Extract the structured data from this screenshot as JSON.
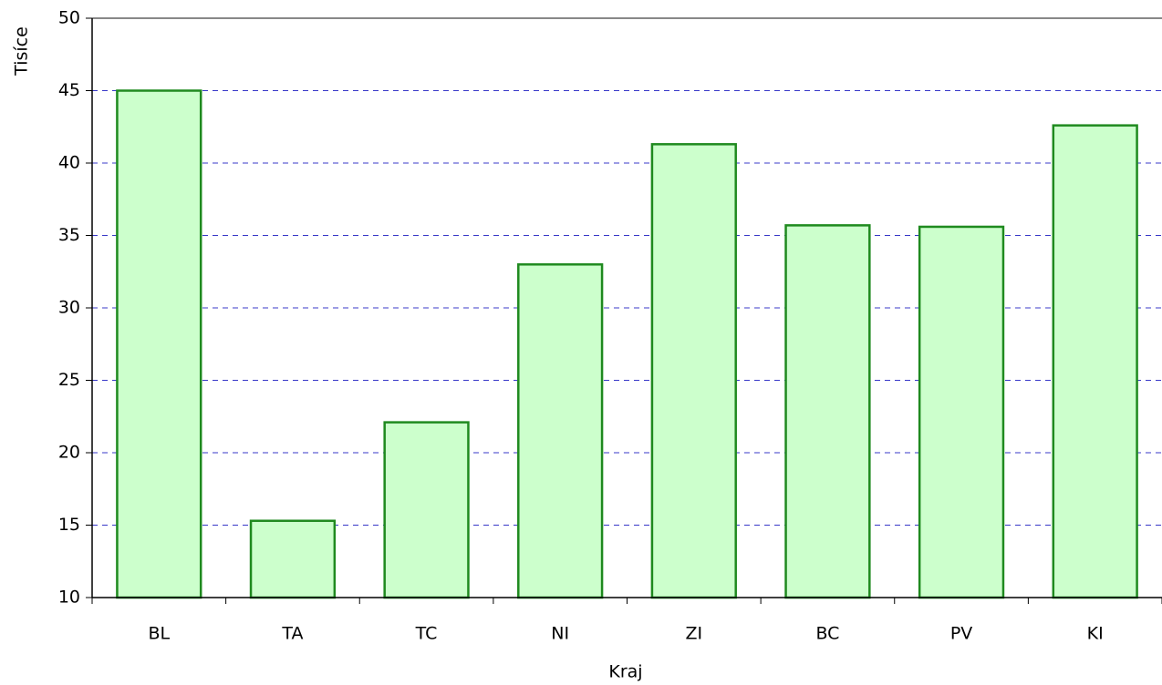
{
  "chart_data": {
    "type": "bar",
    "x_label": "Kraj",
    "y_label": "Tisíce",
    "categories": [
      "BL",
      "TA",
      "TC",
      "NI",
      "ZI",
      "BC",
      "PV",
      "KI"
    ],
    "values": [
      45.0,
      15.3,
      22.1,
      33.0,
      41.3,
      35.7,
      35.6,
      42.6
    ],
    "color": "#ccffcc",
    "edge_color": "#1f8a1f",
    "ylim": [
      10,
      50
    ],
    "yticks": [
      10,
      15,
      20,
      25,
      30,
      35,
      40,
      45,
      50
    ],
    "grid": true,
    "grid_color": "#3838c8"
  }
}
